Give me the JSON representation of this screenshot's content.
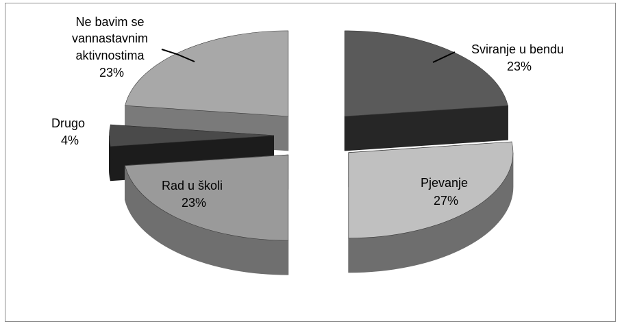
{
  "chart_data": {
    "type": "pie",
    "title": "",
    "style": "3d-exploded",
    "slices": [
      {
        "label": "Sviranje u bendu",
        "value": 23,
        "display": "23%",
        "color": "#5a5a5a",
        "side_color": "#262626"
      },
      {
        "label": "Pjevanje",
        "value": 27,
        "display": "27%",
        "color": "#c0c0c0",
        "side_color": "#6e6e6e"
      },
      {
        "label": "Rad u školi",
        "value": 23,
        "display": "23%",
        "color": "#9a9a9a",
        "side_color": "#6f6f6f"
      },
      {
        "label": "Drugo",
        "value": 4,
        "display": "4%",
        "color": "#4a4a4a",
        "side_color": "#1c1c1c"
      },
      {
        "label": "Ne bavim se vannastavnim aktivnostima",
        "value": 23,
        "display": "23%",
        "color": "#a8a8a8",
        "side_color": "#7a7a7a"
      }
    ],
    "legend": "none"
  }
}
